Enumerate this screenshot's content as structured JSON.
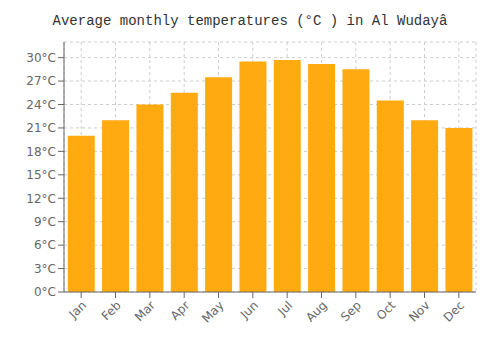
{
  "chart_data": {
    "type": "bar",
    "title": "Average monthly temperatures (°C ) in Al Wudayâ",
    "categories": [
      "Jan",
      "Feb",
      "Mar",
      "Apr",
      "May",
      "Jun",
      "Jul",
      "Aug",
      "Sep",
      "Oct",
      "Nov",
      "Dec"
    ],
    "values": [
      20.0,
      22.0,
      24.0,
      25.5,
      27.5,
      29.5,
      29.7,
      29.2,
      28.5,
      24.5,
      22.0,
      21.0
    ],
    "color": "#FFAA10",
    "ylim": [
      0,
      32
    ],
    "yticks": [
      {
        "value": 0,
        "label": "0°C"
      },
      {
        "value": 3,
        "label": "3°C"
      },
      {
        "value": 6,
        "label": "6°C"
      },
      {
        "value": 9,
        "label": "9°C"
      },
      {
        "value": 12,
        "label": "12°C"
      },
      {
        "value": 15,
        "label": "15°C"
      },
      {
        "value": 18,
        "label": "18°C"
      },
      {
        "value": 21,
        "label": "21°C"
      },
      {
        "value": 24,
        "label": "24°C"
      },
      {
        "value": 27,
        "label": "27°C"
      },
      {
        "value": 30,
        "label": "30°C"
      }
    ],
    "grid": true
  }
}
